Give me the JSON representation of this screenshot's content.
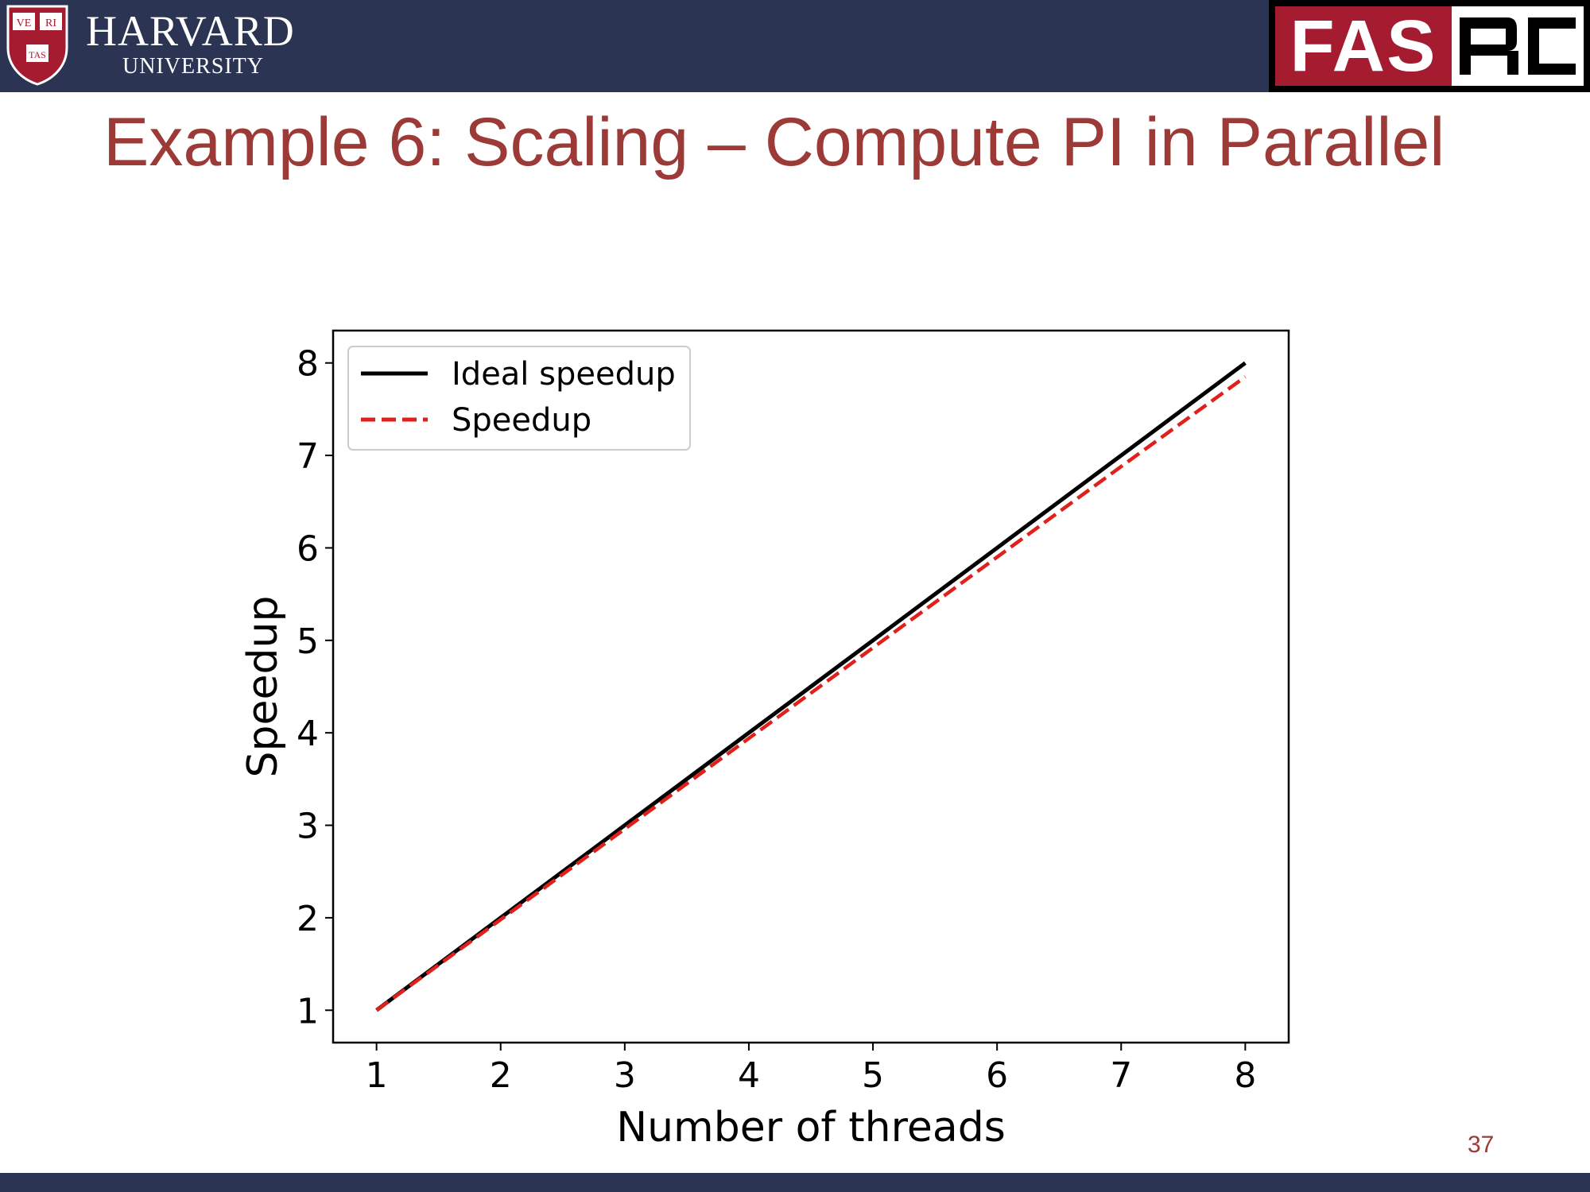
{
  "header": {
    "harvard_name": "HARVARD",
    "harvard_sub": "UNIVERSITY",
    "shield_text": [
      "VE",
      "RI",
      "TAS"
    ],
    "fas_text": "FAS",
    "rc_text": "RC",
    "bar_color": "#2b3452",
    "fas_color": "#a51c30"
  },
  "slide": {
    "title": "Example 6: Scaling – Compute PI in Parallel",
    "title_color": "#9b3a37",
    "page_number": "37"
  },
  "chart_data": {
    "type": "line",
    "title": "",
    "xlabel": "Number of threads",
    "ylabel": "Speedup",
    "x": [
      1,
      2,
      3,
      4,
      5,
      6,
      7,
      8
    ],
    "xlim": [
      0.65,
      8.35
    ],
    "ylim": [
      0.65,
      8.35
    ],
    "xticks": [
      1,
      2,
      3,
      4,
      5,
      6,
      7,
      8
    ],
    "yticks": [
      1,
      2,
      3,
      4,
      5,
      6,
      7,
      8
    ],
    "grid": false,
    "legend_position": "top-left",
    "series": [
      {
        "name": "Ideal speedup",
        "values": [
          1,
          2,
          3,
          4,
          5,
          6,
          7,
          8
        ],
        "color": "#000000",
        "style": "solid"
      },
      {
        "name": "Speedup",
        "values": [
          1,
          1.98,
          2.96,
          3.94,
          4.92,
          5.9,
          6.88,
          7.85
        ],
        "color": "#e0201b",
        "style": "dashed"
      }
    ]
  }
}
